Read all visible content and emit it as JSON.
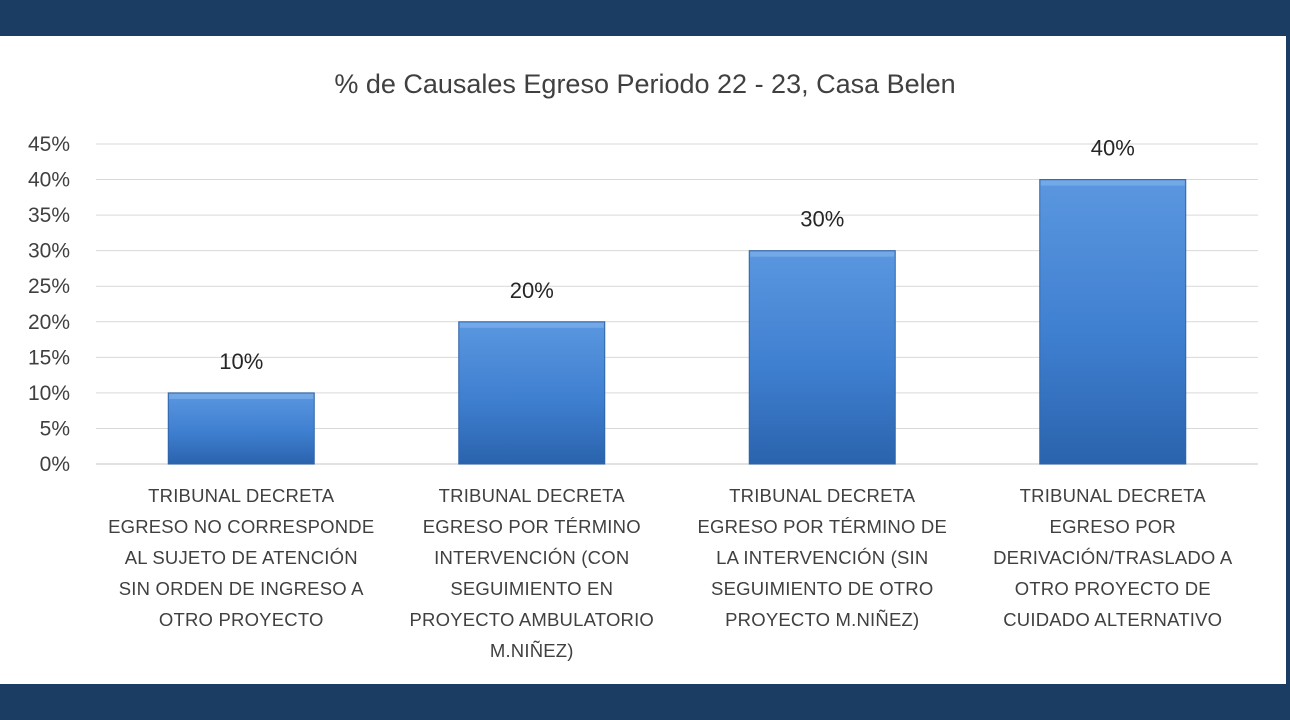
{
  "chart_data": {
    "type": "bar",
    "title": "% de Causales Egreso Periodo 22 - 23, Casa Belen",
    "categories": [
      "TRIBUNAL DECRETA EGRESO NO CORRESPONDE AL SUJETO DE ATENCIÓN SIN ORDEN DE INGRESO A OTRO PROYECTO",
      "TRIBUNAL DECRETA EGRESO POR TÉRMINO INTERVENCIÓN (CON SEGUIMIENTO EN PROYECTO AMBULATORIO M.NIÑEZ)",
      "TRIBUNAL DECRETA EGRESO POR TÉRMINO DE LA INTERVENCIÓN (SIN SEGUIMIENTO DE OTRO PROYECTO M.NIÑEZ)",
      "TRIBUNAL DECRETA EGRESO POR DERIVACIÓN/TRASLADO A OTRO PROYECTO DE CUIDADO ALTERNATIVO"
    ],
    "category_lines": [
      "TRIBUNAL DECRETA\nEGRESO NO CORRESPONDE\nAL SUJETO DE ATENCIÓN\nSIN ORDEN DE INGRESO A\nOTRO PROYECTO",
      "TRIBUNAL DECRETA\nEGRESO POR TÉRMINO\nINTERVENCIÓN (CON\nSEGUIMIENTO EN\nPROYECTO AMBULATORIO\nM.NIÑEZ)",
      "TRIBUNAL DECRETA\nEGRESO POR TÉRMINO DE\nLA INTERVENCIÓN (SIN\nSEGUIMIENTO DE OTRO\nPROYECTO M.NIÑEZ)",
      "TRIBUNAL DECRETA\nEGRESO POR\nDERIVACIÓN/TRASLADO A\nOTRO PROYECTO DE\nCUIDADO ALTERNATIVO"
    ],
    "values": [
      10,
      20,
      30,
      40
    ],
    "data_labels": [
      "10%",
      "20%",
      "30%",
      "40%"
    ],
    "y_ticks": [
      "0%",
      "5%",
      "10%",
      "15%",
      "20%",
      "25%",
      "30%",
      "35%",
      "40%",
      "45%"
    ],
    "ylim": [
      0,
      45
    ],
    "y_unit": "%",
    "grid": true,
    "legend": "none",
    "colors": {
      "bar_top": "#5b97e0",
      "bar_mid": "#3f7fd0",
      "bar_bottom": "#2a63ad",
      "frame": "#1b3d63",
      "gridline": "#d9d9d9",
      "text": "#404040"
    }
  }
}
